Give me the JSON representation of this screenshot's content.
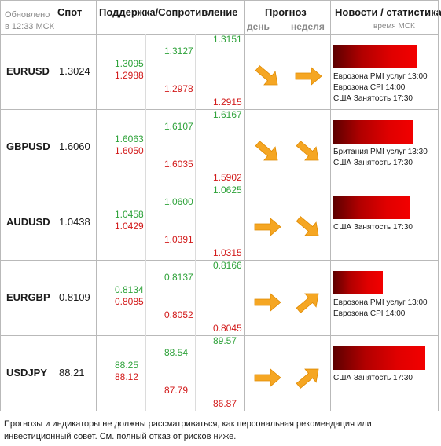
{
  "header": {
    "updated_line1": "Обновлено",
    "updated_line2": "в 12:33 МСК",
    "spot": "Спот",
    "support_resistance": "Поддержка/Сопротивление",
    "forecast": "Прогноз",
    "day": "день",
    "week": "неделя",
    "news": "Новости / статистика",
    "news_time": "время МСК"
  },
  "rows": [
    {
      "pair": "EURUSD",
      "spot": "1.3024",
      "s1_res": "1.3095",
      "s1_sup": "1.2988",
      "s2_res": "1.3127",
      "s2_sup": "1.2978",
      "s3_res": "1.3151",
      "s3_sup": "1.2915",
      "day_icon": "arrow-down-right-icon",
      "week_icon": "arrow-right-icon",
      "news_strength": 0.91,
      "news": [
        "Еврозона PMI услуг 13:00",
        "Еврозона CPI 14:00",
        "США Занятость 17:30"
      ]
    },
    {
      "pair": "GBPUSD",
      "spot": "1.6060",
      "s1_res": "1.6063",
      "s1_sup": "1.6050",
      "s2_res": "1.6107",
      "s2_sup": "1.6035",
      "s3_res": "1.6167",
      "s3_sup": "1.5902",
      "day_icon": "arrow-down-right-icon",
      "week_icon": "arrow-down-right-icon",
      "news_strength": 0.87,
      "news": [
        "Британия PMI услуг 13:30",
        "США Занятость 17:30"
      ]
    },
    {
      "pair": "AUDUSD",
      "spot": "1.0438",
      "s1_res": "1.0458",
      "s1_sup": "1.0429",
      "s2_res": "1.0600",
      "s2_sup": "1.0391",
      "s3_res": "1.0625",
      "s3_sup": "1.0315",
      "day_icon": "arrow-right-icon",
      "week_icon": "arrow-down-right-icon",
      "news_strength": 0.83,
      "news": [
        "США Занятость 17:30"
      ]
    },
    {
      "pair": "EURGBP",
      "spot": "0.8109",
      "s1_res": "0.8134",
      "s1_sup": "0.8085",
      "s2_res": "0.8137",
      "s2_sup": "0.8052",
      "s3_res": "0.8166",
      "s3_sup": "0.8045",
      "day_icon": "arrow-right-icon",
      "week_icon": "arrow-up-right-icon",
      "news_strength": 0.54,
      "news": [
        "Еврозона PMI услуг 13:00",
        "Еврозона CPI 14:00"
      ]
    },
    {
      "pair": "USDJPY",
      "spot": "88.21",
      "s1_res": "88.25",
      "s1_sup": "88.12",
      "s2_res": "88.54",
      "s2_sup": "87.79",
      "s3_res": "89.57",
      "s3_sup": "86.87",
      "day_icon": "arrow-right-icon",
      "week_icon": "arrow-up-right-icon",
      "news_strength": 1.0,
      "news": [
        "США Занятость 17:30"
      ]
    }
  ],
  "disclaimer": "Прогнозы и индикаторы не должны рассматриваться, как персональная рекомендация или инвестиционный совет. См. полный отказ от рисков ниже.",
  "colors": {
    "support": "#2ea23a",
    "resistance": "#d21a1a",
    "arrow": "#f5a623",
    "news_bar": "#e00000"
  }
}
